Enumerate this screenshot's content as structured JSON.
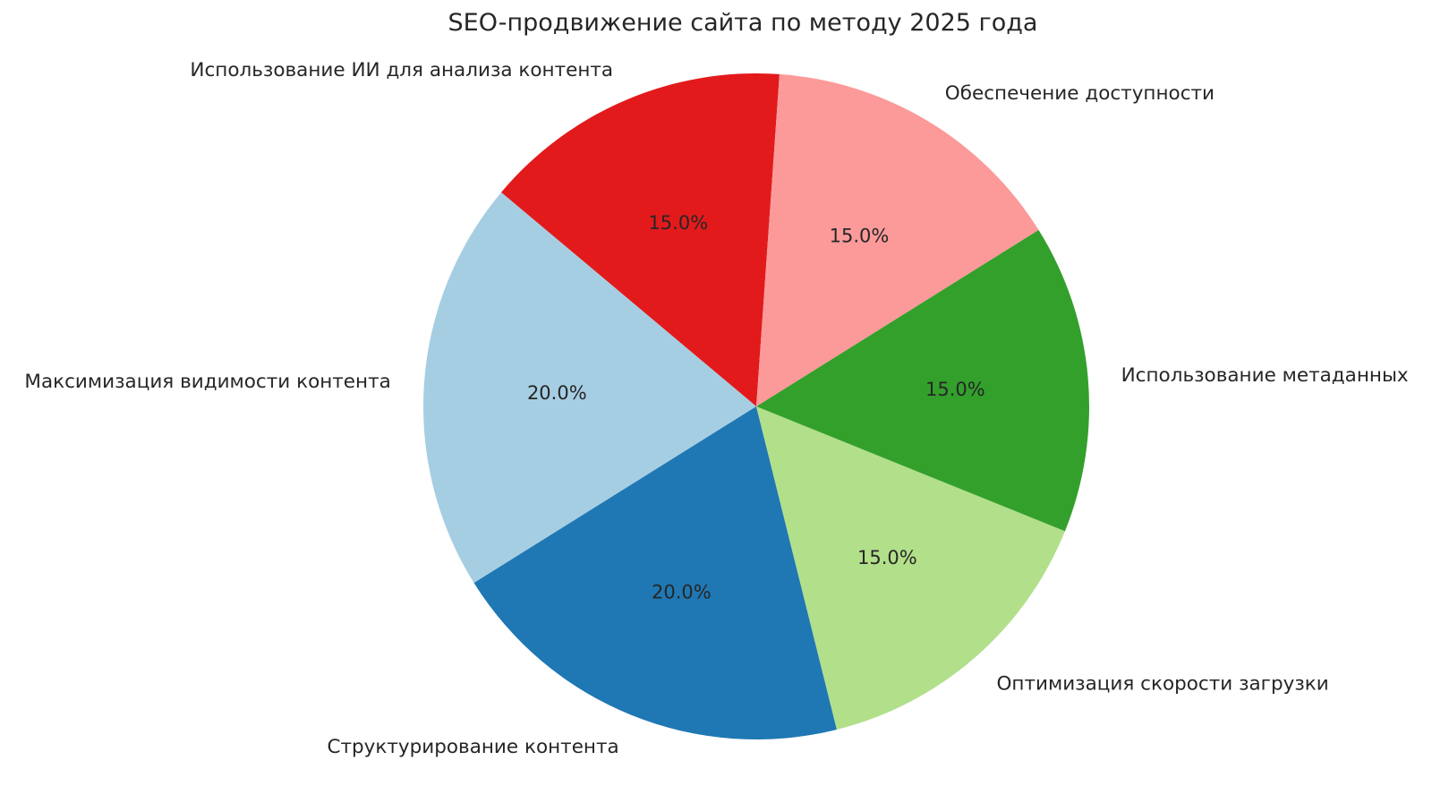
{
  "chart_data": {
    "type": "pie",
    "title": "SEO-продвижение сайта по методу 2025 года",
    "legend": "none",
    "grid": false,
    "start_angle_deg": 86,
    "direction": "counterclockwise",
    "text_color": "#262626",
    "background_color": "#ffffff",
    "slices": [
      {
        "label": "Использование ИИ для анализа контента",
        "value": 15.0,
        "pct_label": "15.0%",
        "color": "#e31a1c"
      },
      {
        "label": "Максимизация видимости контента",
        "value": 20.0,
        "pct_label": "20.0%",
        "color": "#a6cee3"
      },
      {
        "label": "Структурирование контента",
        "value": 20.0,
        "pct_label": "20.0%",
        "color": "#1f78b4"
      },
      {
        "label": "Оптимизация скорости загрузки",
        "value": 15.0,
        "pct_label": "15.0%",
        "color": "#b2df8a"
      },
      {
        "label": "Использование метаданных",
        "value": 15.0,
        "pct_label": "15.0%",
        "color": "#33a02c"
      },
      {
        "label": "Обеспечение доступности",
        "value": 15.0,
        "pct_label": "15.0%",
        "color": "#fb9a99"
      }
    ]
  }
}
